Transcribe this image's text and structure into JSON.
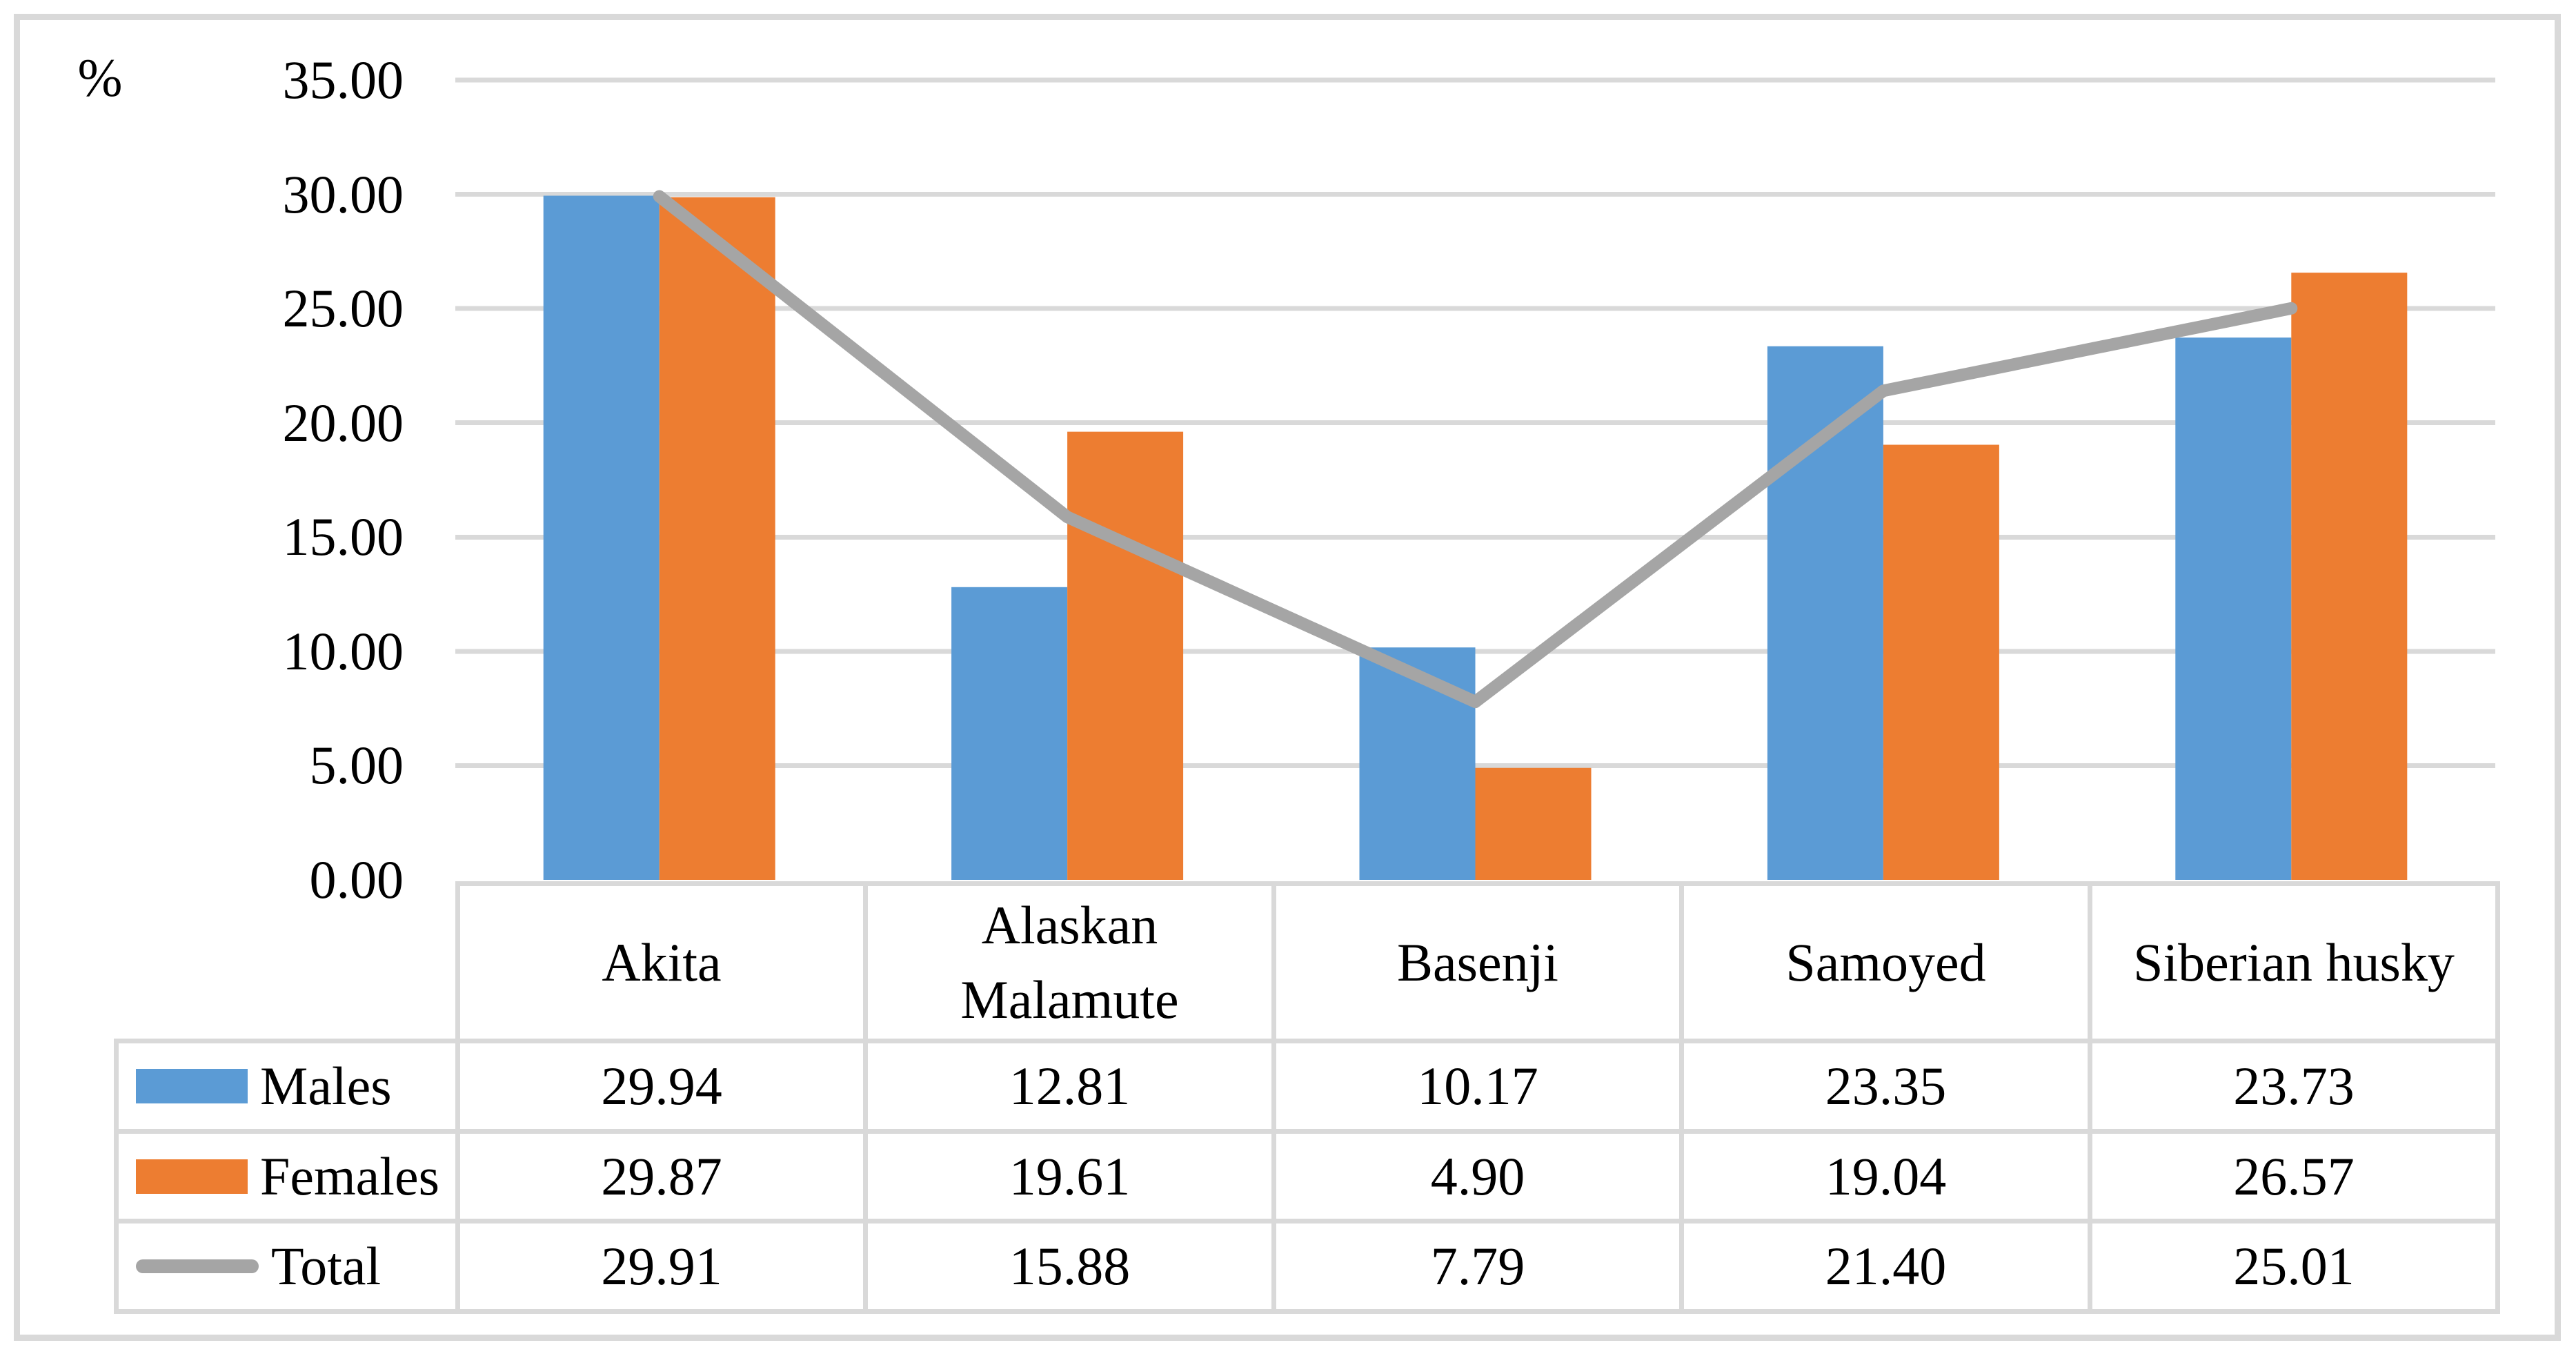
{
  "figure": {
    "unit_label": "%"
  },
  "colors": {
    "males": "#5B9BD5",
    "females": "#ED7D31",
    "total": "#A5A5A5",
    "grid": "#D9D9D9",
    "table_border": "#D9D9D9",
    "figure_border": "#D9D9D9",
    "text": "#000000",
    "background": "#FFFFFF"
  },
  "y_axis": {
    "unit_label": "%",
    "ticks": [
      {
        "label": "35.00",
        "value": 35
      },
      {
        "label": "30.00",
        "value": 30
      },
      {
        "label": "25.00",
        "value": 25
      },
      {
        "label": "20.00",
        "value": 20
      },
      {
        "label": "15.00",
        "value": 15
      },
      {
        "label": "10.00",
        "value": 10
      },
      {
        "label": "5.00",
        "value": 5
      },
      {
        "label": "0.00",
        "value": 0
      }
    ]
  },
  "chart_data": {
    "type": "bar",
    "categories": [
      "Akita",
      "Alaskan Malamute",
      "Basenji",
      "Samoyed",
      "Siberian husky"
    ],
    "series": [
      {
        "name": "Males",
        "type": "bar",
        "color_key": "males",
        "values": [
          29.94,
          12.81,
          10.17,
          23.35,
          23.73
        ]
      },
      {
        "name": "Females",
        "type": "bar",
        "color_key": "females",
        "values": [
          29.87,
          19.61,
          4.9,
          19.04,
          26.57
        ]
      },
      {
        "name": "Total",
        "type": "line",
        "color_key": "total",
        "values": [
          29.91,
          15.88,
          7.79,
          21.4,
          25.01
        ]
      }
    ],
    "title": "",
    "xlabel": "",
    "ylabel": "%",
    "ylim": [
      0,
      35
    ],
    "ytick_step": 5,
    "grid": true,
    "legend_position": "data-table-left"
  },
  "data_table": {
    "categories": [
      "Akita",
      "Alaskan Malamute",
      "Basenji",
      "Samoyed",
      "Siberian husky"
    ],
    "rows": [
      {
        "label": "Males",
        "swatch": "bar",
        "color_key": "males",
        "values": [
          "29.94",
          "12.81",
          "10.17",
          "23.35",
          "23.73"
        ]
      },
      {
        "label": "Females",
        "swatch": "bar",
        "color_key": "females",
        "values": [
          "29.87",
          "19.61",
          "4.90",
          "19.04",
          "26.57"
        ]
      },
      {
        "label": "Total",
        "swatch": "line",
        "color_key": "total",
        "values": [
          "29.91",
          "15.88",
          "7.79",
          "21.40",
          "25.01"
        ]
      }
    ]
  }
}
